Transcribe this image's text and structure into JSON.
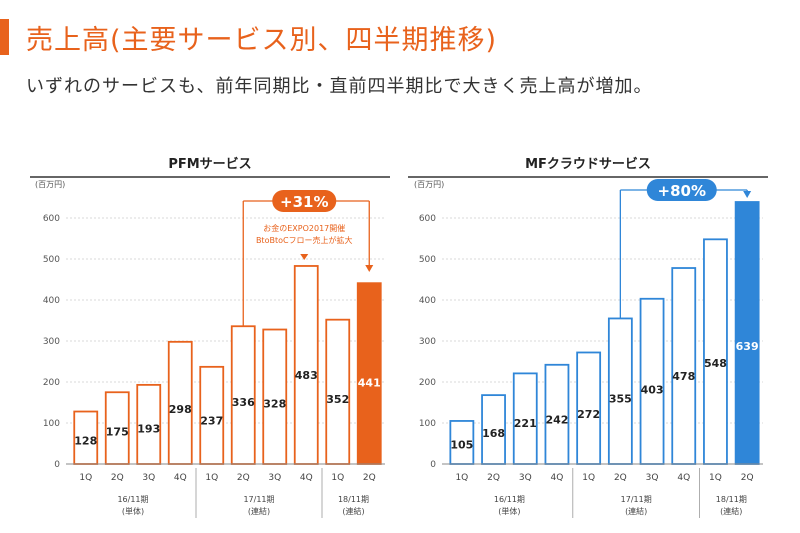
{
  "header": {
    "title": "売上高(主要サービス別、四半期推移)",
    "subtitle": "いずれのサービスも、前年同期比・直前四半期比で大きく売上高が増加。"
  },
  "colors": {
    "accent": "#e8621c",
    "pfm": "#e8621c",
    "mf": "#2f86d8",
    "text": "#333333",
    "grid": "#cccccc"
  },
  "chart_data": [
    {
      "type": "bar",
      "title": "PFMサービス",
      "ylabel": "(百万円)",
      "ylim": [
        0,
        600
      ],
      "yticks": [
        0,
        100,
        200,
        300,
        400,
        500,
        600
      ],
      "categories": [
        "1Q",
        "2Q",
        "3Q",
        "4Q",
        "1Q",
        "2Q",
        "3Q",
        "4Q",
        "1Q",
        "2Q"
      ],
      "values": [
        128,
        175,
        193,
        298,
        237,
        336,
        328,
        483,
        352,
        441
      ],
      "highlight_index": 9,
      "groups": [
        {
          "label": "16/11期",
          "sublabel": "(単体)",
          "start": 0,
          "end": 3
        },
        {
          "label": "17/11期",
          "sublabel": "(連結)",
          "start": 4,
          "end": 7
        },
        {
          "label": "18/11期",
          "sublabel": "(連結)",
          "start": 8,
          "end": 9
        }
      ],
      "growth": {
        "label": "+31%",
        "from_index": 5,
        "to_index": 9
      },
      "annotation": {
        "lines": [
          "お金のEXPO2017開催",
          "BtoBtoCフロー売上が拡大"
        ],
        "index": 7
      }
    },
    {
      "type": "bar",
      "title": "MFクラウドサービス",
      "ylabel": "(百万円)",
      "ylim": [
        0,
        600
      ],
      "yticks": [
        0,
        100,
        200,
        300,
        400,
        500,
        600
      ],
      "categories": [
        "1Q",
        "2Q",
        "3Q",
        "4Q",
        "1Q",
        "2Q",
        "3Q",
        "4Q",
        "1Q",
        "2Q"
      ],
      "values": [
        105,
        168,
        221,
        242,
        272,
        355,
        403,
        478,
        548,
        639
      ],
      "highlight_index": 9,
      "groups": [
        {
          "label": "16/11期",
          "sublabel": "(単体)",
          "start": 0,
          "end": 3
        },
        {
          "label": "17/11期",
          "sublabel": "(連結)",
          "start": 4,
          "end": 7
        },
        {
          "label": "18/11期",
          "sublabel": "(連結)",
          "start": 8,
          "end": 9
        }
      ],
      "growth": {
        "label": "+80%",
        "from_index": 5,
        "to_index": 9
      }
    }
  ]
}
